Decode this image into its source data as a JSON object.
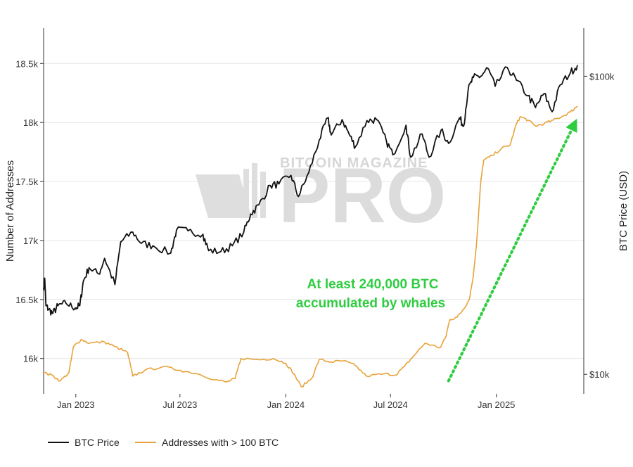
{
  "chart_data": {
    "type": "line",
    "title": "",
    "xlabel": "",
    "ylabel_left": "Number of Addresses",
    "ylabel_right": "BTC Price (USD)",
    "x_range": [
      "2022-11-06",
      "2025-06-02"
    ],
    "x_ticks": [
      {
        "date": "2023-01-01",
        "label": "Jan 2023"
      },
      {
        "date": "2023-07-01",
        "label": "Jul 2023"
      },
      {
        "date": "2024-01-01",
        "label": "Jan 2024"
      },
      {
        "date": "2024-07-01",
        "label": "Jul 2024"
      },
      {
        "date": "2025-01-01",
        "label": "Jan 2025"
      }
    ],
    "y_left": {
      "range": [
        15700,
        18800
      ],
      "ticks": [
        {
          "value": 16000,
          "label": "16k"
        },
        {
          "value": 16500,
          "label": "16.5k"
        },
        {
          "value": 17000,
          "label": "17k"
        },
        {
          "value": 17500,
          "label": "17.5k"
        },
        {
          "value": 18000,
          "label": "18k"
        },
        {
          "value": 18500,
          "label": "18.5k"
        }
      ]
    },
    "y_right": {
      "scale": "log",
      "range": [
        8600,
        145000
      ],
      "ticks": [
        {
          "value": 10000,
          "label": "$10k"
        },
        {
          "value": 100000,
          "label": "$100k"
        }
      ]
    },
    "grid": true,
    "legend_position": "bottom-left",
    "series": [
      {
        "name": "BTC Price",
        "axis": "right",
        "color": "#111111",
        "points": [
          [
            "2022-11-06",
            19500
          ],
          [
            "2022-11-08",
            21000
          ],
          [
            "2022-11-10",
            17000
          ],
          [
            "2022-11-15",
            16500
          ],
          [
            "2022-11-22",
            16000
          ],
          [
            "2022-12-01",
            17000
          ],
          [
            "2022-12-15",
            17300
          ],
          [
            "2022-12-31",
            16700
          ],
          [
            "2023-01-08",
            17000
          ],
          [
            "2023-01-14",
            20500
          ],
          [
            "2023-01-24",
            22800
          ],
          [
            "2023-02-10",
            21700
          ],
          [
            "2023-02-20",
            24500
          ],
          [
            "2023-03-10",
            20000
          ],
          [
            "2023-03-20",
            27800
          ],
          [
            "2023-04-10",
            30000
          ],
          [
            "2023-04-25",
            27500
          ],
          [
            "2023-05-15",
            27000
          ],
          [
            "2023-06-15",
            25500
          ],
          [
            "2023-06-25",
            30500
          ],
          [
            "2023-07-15",
            30300
          ],
          [
            "2023-08-10",
            29500
          ],
          [
            "2023-08-20",
            26000
          ],
          [
            "2023-09-10",
            25800
          ],
          [
            "2023-09-30",
            27000
          ],
          [
            "2023-10-20",
            30000
          ],
          [
            "2023-11-01",
            34500
          ],
          [
            "2023-11-15",
            37000
          ],
          [
            "2023-12-05",
            43000
          ],
          [
            "2023-12-20",
            43500
          ],
          [
            "2024-01-10",
            46500
          ],
          [
            "2024-01-23",
            39500
          ],
          [
            "2024-02-10",
            47500
          ],
          [
            "2024-02-28",
            61000
          ],
          [
            "2024-03-14",
            72500
          ],
          [
            "2024-03-20",
            63500
          ],
          [
            "2024-04-08",
            71500
          ],
          [
            "2024-04-20",
            64000
          ],
          [
            "2024-05-01",
            58000
          ],
          [
            "2024-05-21",
            71000
          ],
          [
            "2024-06-07",
            71500
          ],
          [
            "2024-06-24",
            60500
          ],
          [
            "2024-07-05",
            54500
          ],
          [
            "2024-07-28",
            68500
          ],
          [
            "2024-08-05",
            53500
          ],
          [
            "2024-08-25",
            64000
          ],
          [
            "2024-09-06",
            53500
          ],
          [
            "2024-09-27",
            66000
          ],
          [
            "2024-10-10",
            59500
          ],
          [
            "2024-10-29",
            72500
          ],
          [
            "2024-11-05",
            68000
          ],
          [
            "2024-11-13",
            90000
          ],
          [
            "2024-11-22",
            99000
          ],
          [
            "2024-12-05",
            100000
          ],
          [
            "2024-12-17",
            106500
          ],
          [
            "2024-12-30",
            92500
          ],
          [
            "2025-01-20",
            107000
          ],
          [
            "2025-02-05",
            97000
          ],
          [
            "2025-02-25",
            86000
          ],
          [
            "2025-03-10",
            78500
          ],
          [
            "2025-03-25",
            87500
          ],
          [
            "2025-04-08",
            76000
          ],
          [
            "2025-04-22",
            93500
          ],
          [
            "2025-05-10",
            103000
          ],
          [
            "2025-05-22",
            109000
          ]
        ]
      },
      {
        "name": "Addresses with > 100 BTC",
        "axis": "left",
        "color": "#e8a23a",
        "points": [
          [
            "2022-11-06",
            15880
          ],
          [
            "2022-11-20",
            15860
          ],
          [
            "2022-12-05",
            15810
          ],
          [
            "2022-12-20",
            15880
          ],
          [
            "2022-12-28",
            16100
          ],
          [
            "2023-01-10",
            16160
          ],
          [
            "2023-01-25",
            16130
          ],
          [
            "2023-02-20",
            16140
          ],
          [
            "2023-03-10",
            16100
          ],
          [
            "2023-04-01",
            16050
          ],
          [
            "2023-04-10",
            15850
          ],
          [
            "2023-05-01",
            15900
          ],
          [
            "2023-06-01",
            15930
          ],
          [
            "2023-07-01",
            15900
          ],
          [
            "2023-08-01",
            15870
          ],
          [
            "2023-09-01",
            15820
          ],
          [
            "2023-09-20",
            15800
          ],
          [
            "2023-10-05",
            15830
          ],
          [
            "2023-10-15",
            16000
          ],
          [
            "2023-11-15",
            15990
          ],
          [
            "2023-12-10",
            16000
          ],
          [
            "2024-01-01",
            15960
          ],
          [
            "2024-01-15",
            15870
          ],
          [
            "2024-01-28",
            15760
          ],
          [
            "2024-02-15",
            15830
          ],
          [
            "2024-02-28",
            15990
          ],
          [
            "2024-03-20",
            15970
          ],
          [
            "2024-04-10",
            15980
          ],
          [
            "2024-05-01",
            15940
          ],
          [
            "2024-05-20",
            15850
          ],
          [
            "2024-06-20",
            15870
          ],
          [
            "2024-07-10",
            15860
          ],
          [
            "2024-07-25",
            15930
          ],
          [
            "2024-08-10",
            16020
          ],
          [
            "2024-08-30",
            16130
          ],
          [
            "2024-09-25",
            16090
          ],
          [
            "2024-10-05",
            16180
          ],
          [
            "2024-10-12",
            16330
          ],
          [
            "2024-10-25",
            16350
          ],
          [
            "2024-11-05",
            16420
          ],
          [
            "2024-11-15",
            16500
          ],
          [
            "2024-11-22",
            16700
          ],
          [
            "2024-11-28",
            17000
          ],
          [
            "2024-12-05",
            17500
          ],
          [
            "2024-12-10",
            17680
          ],
          [
            "2024-12-25",
            17720
          ],
          [
            "2025-01-10",
            17780
          ],
          [
            "2025-01-25",
            17810
          ],
          [
            "2025-02-05",
            17990
          ],
          [
            "2025-02-12",
            18050
          ],
          [
            "2025-02-25",
            18020
          ],
          [
            "2025-03-10",
            17970
          ],
          [
            "2025-03-25",
            17990
          ],
          [
            "2025-04-10",
            18020
          ],
          [
            "2025-04-25",
            18050
          ],
          [
            "2025-05-10",
            18090
          ],
          [
            "2025-05-22",
            18140
          ]
        ]
      }
    ],
    "annotations": [
      {
        "lines": [
          "At least 240,000 BTC",
          "accumulated by whales"
        ],
        "color": "#2ecc40"
      }
    ],
    "arrow": {
      "color": "#2ecc40",
      "style": "dotted",
      "from": [
        "2024-10-10",
        15810
      ],
      "to": [
        "2025-05-18",
        18000
      ]
    }
  },
  "watermark": {
    "small": "BITCOIN MAGAZINE",
    "big": "PRO"
  }
}
